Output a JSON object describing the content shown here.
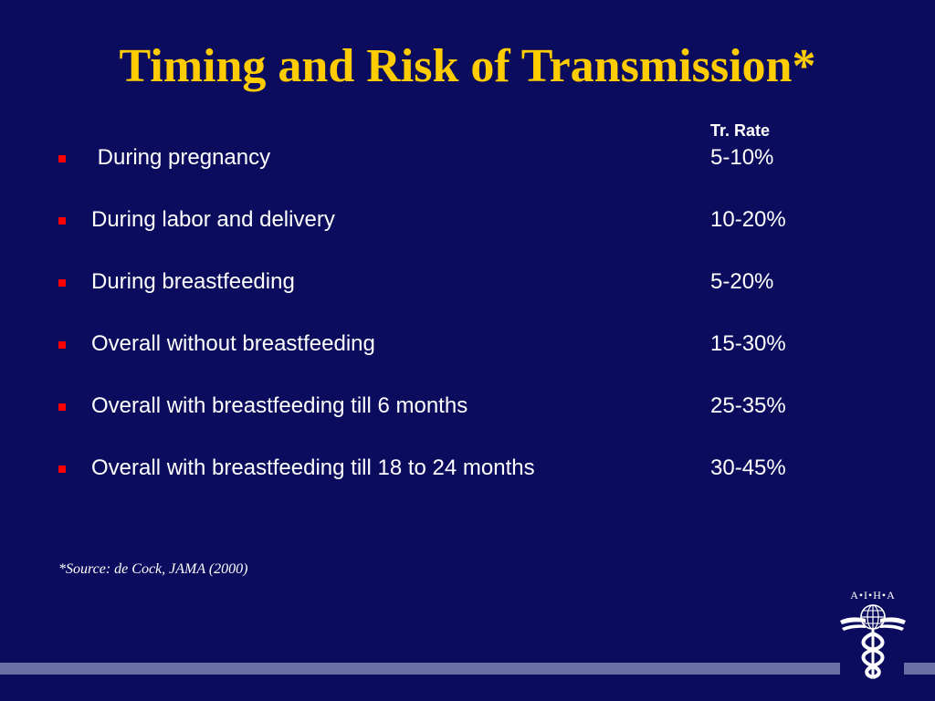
{
  "slide": {
    "title": "Timing and Risk of Transmission*",
    "rate_header": "Tr. Rate",
    "bullets": [
      {
        "label": " During pregnancy",
        "value": "5-10%"
      },
      {
        "label": "During labor and delivery",
        "value": "10-20%"
      },
      {
        "label": "During breastfeeding",
        "value": "5-20%"
      },
      {
        "label": "Overall without breastfeeding",
        "value": "15-30%"
      },
      {
        "label": "Overall with breastfeeding till 6 months",
        "value": "25-35%"
      },
      {
        "label": "Overall with breastfeeding till 18 to 24 months",
        "value": "30-45%"
      }
    ],
    "source": "*Source: de Cock, JAMA (2000)"
  },
  "logo": {
    "text": "A•I•H•A",
    "icon": "caduceus-globe-icon"
  },
  "colors": {
    "background": "#0c0c5e",
    "title": "#ffcc00",
    "text": "#ffffff",
    "bullet": "#ff0000",
    "footer_bar": "#6a6fa8"
  }
}
